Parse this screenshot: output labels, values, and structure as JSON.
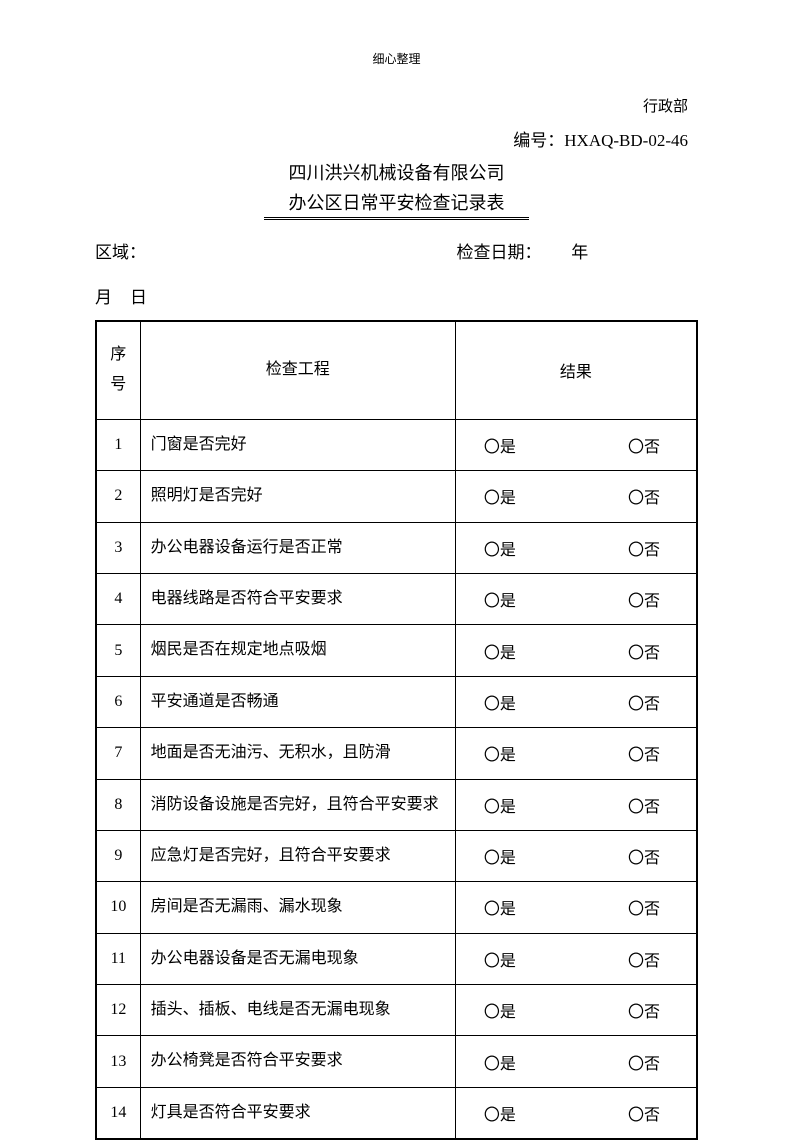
{
  "header_small": "细心整理",
  "department": "行政部",
  "doc_number_label": "编号：",
  "doc_number": "HXAQ-BD-02-46",
  "company": "四川洪兴机械设备有限公司",
  "form_title": "办公区日常平安检查记录表",
  "area_label": "区域：",
  "date_label": "检查日期：",
  "year_label": "年",
  "month_label": "月",
  "day_label": "日",
  "table": {
    "columns": {
      "num": "序号",
      "item": "检查工程",
      "result": "结果"
    },
    "yes": "〇是",
    "no": "〇否",
    "rows": [
      {
        "num": "1",
        "item": "门窗是否完好"
      },
      {
        "num": "2",
        "item": "照明灯是否完好"
      },
      {
        "num": "3",
        "item": "办公电器设备运行是否正常"
      },
      {
        "num": "4",
        "item": "电器线路是否符合平安要求"
      },
      {
        "num": "5",
        "item": "烟民是否在规定地点吸烟"
      },
      {
        "num": "6",
        "item": "平安通道是否畅通"
      },
      {
        "num": "7",
        "item": "地面是否无油污、无积水，且防滑"
      },
      {
        "num": "8",
        "item": "消防设备设施是否完好，且符合平安要求"
      },
      {
        "num": "9",
        "item": "应急灯是否完好，且符合平安要求"
      },
      {
        "num": "10",
        "item": "房间是否无漏雨、漏水现象"
      },
      {
        "num": "11",
        "item": "办公电器设备是否无漏电现象"
      },
      {
        "num": "12",
        "item": "插头、插板、电线是否无漏电现象"
      },
      {
        "num": "13",
        "item": "办公椅凳是否符合平安要求"
      },
      {
        "num": "14",
        "item": "灯具是否符合平安要求"
      }
    ]
  }
}
